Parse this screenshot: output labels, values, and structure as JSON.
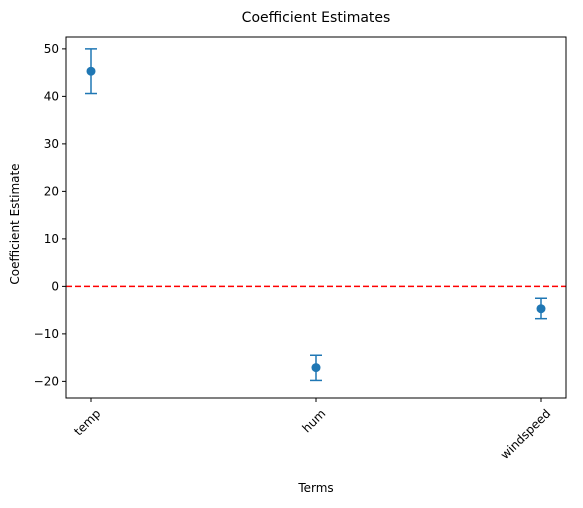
{
  "chart_data": {
    "type": "scatter",
    "title": "Coefficient Estimates",
    "xlabel": "Terms",
    "ylabel": "Coefficient Estimate",
    "categories": [
      "temp",
      "hum",
      "windspeed"
    ],
    "series": [
      {
        "values": [
          45.3,
          -17.1,
          -4.7
        ],
        "error_low": [
          40.6,
          -19.8,
          -6.8
        ],
        "error_high": [
          50.0,
          -14.5,
          -2.5
        ],
        "color": "#1f77b4"
      }
    ],
    "reference_line": {
      "y": 0,
      "style": "dashed",
      "color": "#ff0000"
    },
    "ylim": [
      -23.5,
      52.5
    ],
    "yticks": [
      -20,
      -10,
      0,
      10,
      20,
      30,
      40,
      50
    ],
    "ytick_labels": [
      "−20",
      "−10",
      "0",
      "10",
      "20",
      "30",
      "40",
      "50"
    ],
    "x_tick_rotation": 45,
    "grid": false
  }
}
